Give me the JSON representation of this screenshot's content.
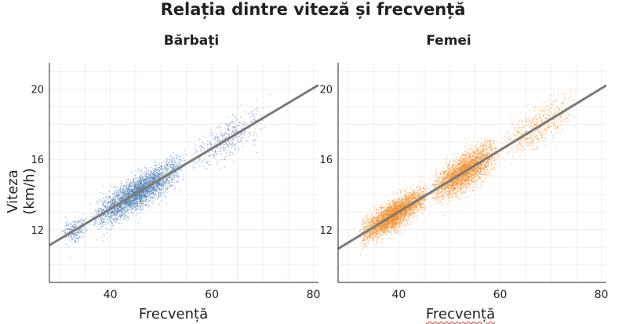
{
  "title": "Relația dintre viteză și frecvență",
  "ylabel": "Viteza (km/h)",
  "colors": {
    "male": "#4a78ae",
    "female": "#f28e2b",
    "fit": "#7a7a7a",
    "axis": "#222222",
    "grid": "#eeeeee"
  },
  "chart_data": [
    {
      "type": "scatter",
      "title": "Bărbați",
      "xlabel": "Frecvență",
      "ylabel": "Viteza (km/h)",
      "xlim": [
        28,
        81
      ],
      "ylim": [
        9,
        21.5
      ],
      "xticks": [
        40,
        60,
        80
      ],
      "yticks": [
        12,
        16,
        20
      ],
      "grid": true,
      "series": [
        {
          "color": "#4a78ae",
          "clusters": [
            {
              "x": [
                30,
                36
              ],
              "y_center_at_x": "11.8 + 0.05*(x-30)",
              "y_spread": 0.6,
              "count": 250
            },
            {
              "x": [
                36,
                55
              ],
              "trend": "fit",
              "y_spread": 0.75,
              "count": 3200
            },
            {
              "x": [
                55,
                72
              ],
              "trend": "fit",
              "y_spread": 0.9,
              "count": 450
            }
          ]
        }
      ],
      "fit_line": {
        "slope": 0.172,
        "intercept": 6.3
      }
    },
    {
      "type": "scatter",
      "title": "Femei",
      "xlabel": "Frecvență",
      "ylabel": "",
      "xlim": [
        28,
        81
      ],
      "ylim": [
        9,
        21.5
      ],
      "xticks": [
        40,
        60,
        80
      ],
      "yticks": [
        12,
        16,
        20
      ],
      "grid": true,
      "series": [
        {
          "color": "#f28e2b",
          "clusters": [
            {
              "x": [
                32,
                46
              ],
              "trend": "fit",
              "y_spread": 0.65,
              "count": 3500
            },
            {
              "x": [
                46,
                60
              ],
              "trend": "fit",
              "y_spread": 0.8,
              "count": 3000
            },
            {
              "x": [
                60,
                75
              ],
              "trend": "fit",
              "y_spread": 0.9,
              "count": 600
            }
          ]
        }
      ],
      "fit_line": {
        "slope": 0.1755,
        "intercept": 6.0
      }
    }
  ]
}
